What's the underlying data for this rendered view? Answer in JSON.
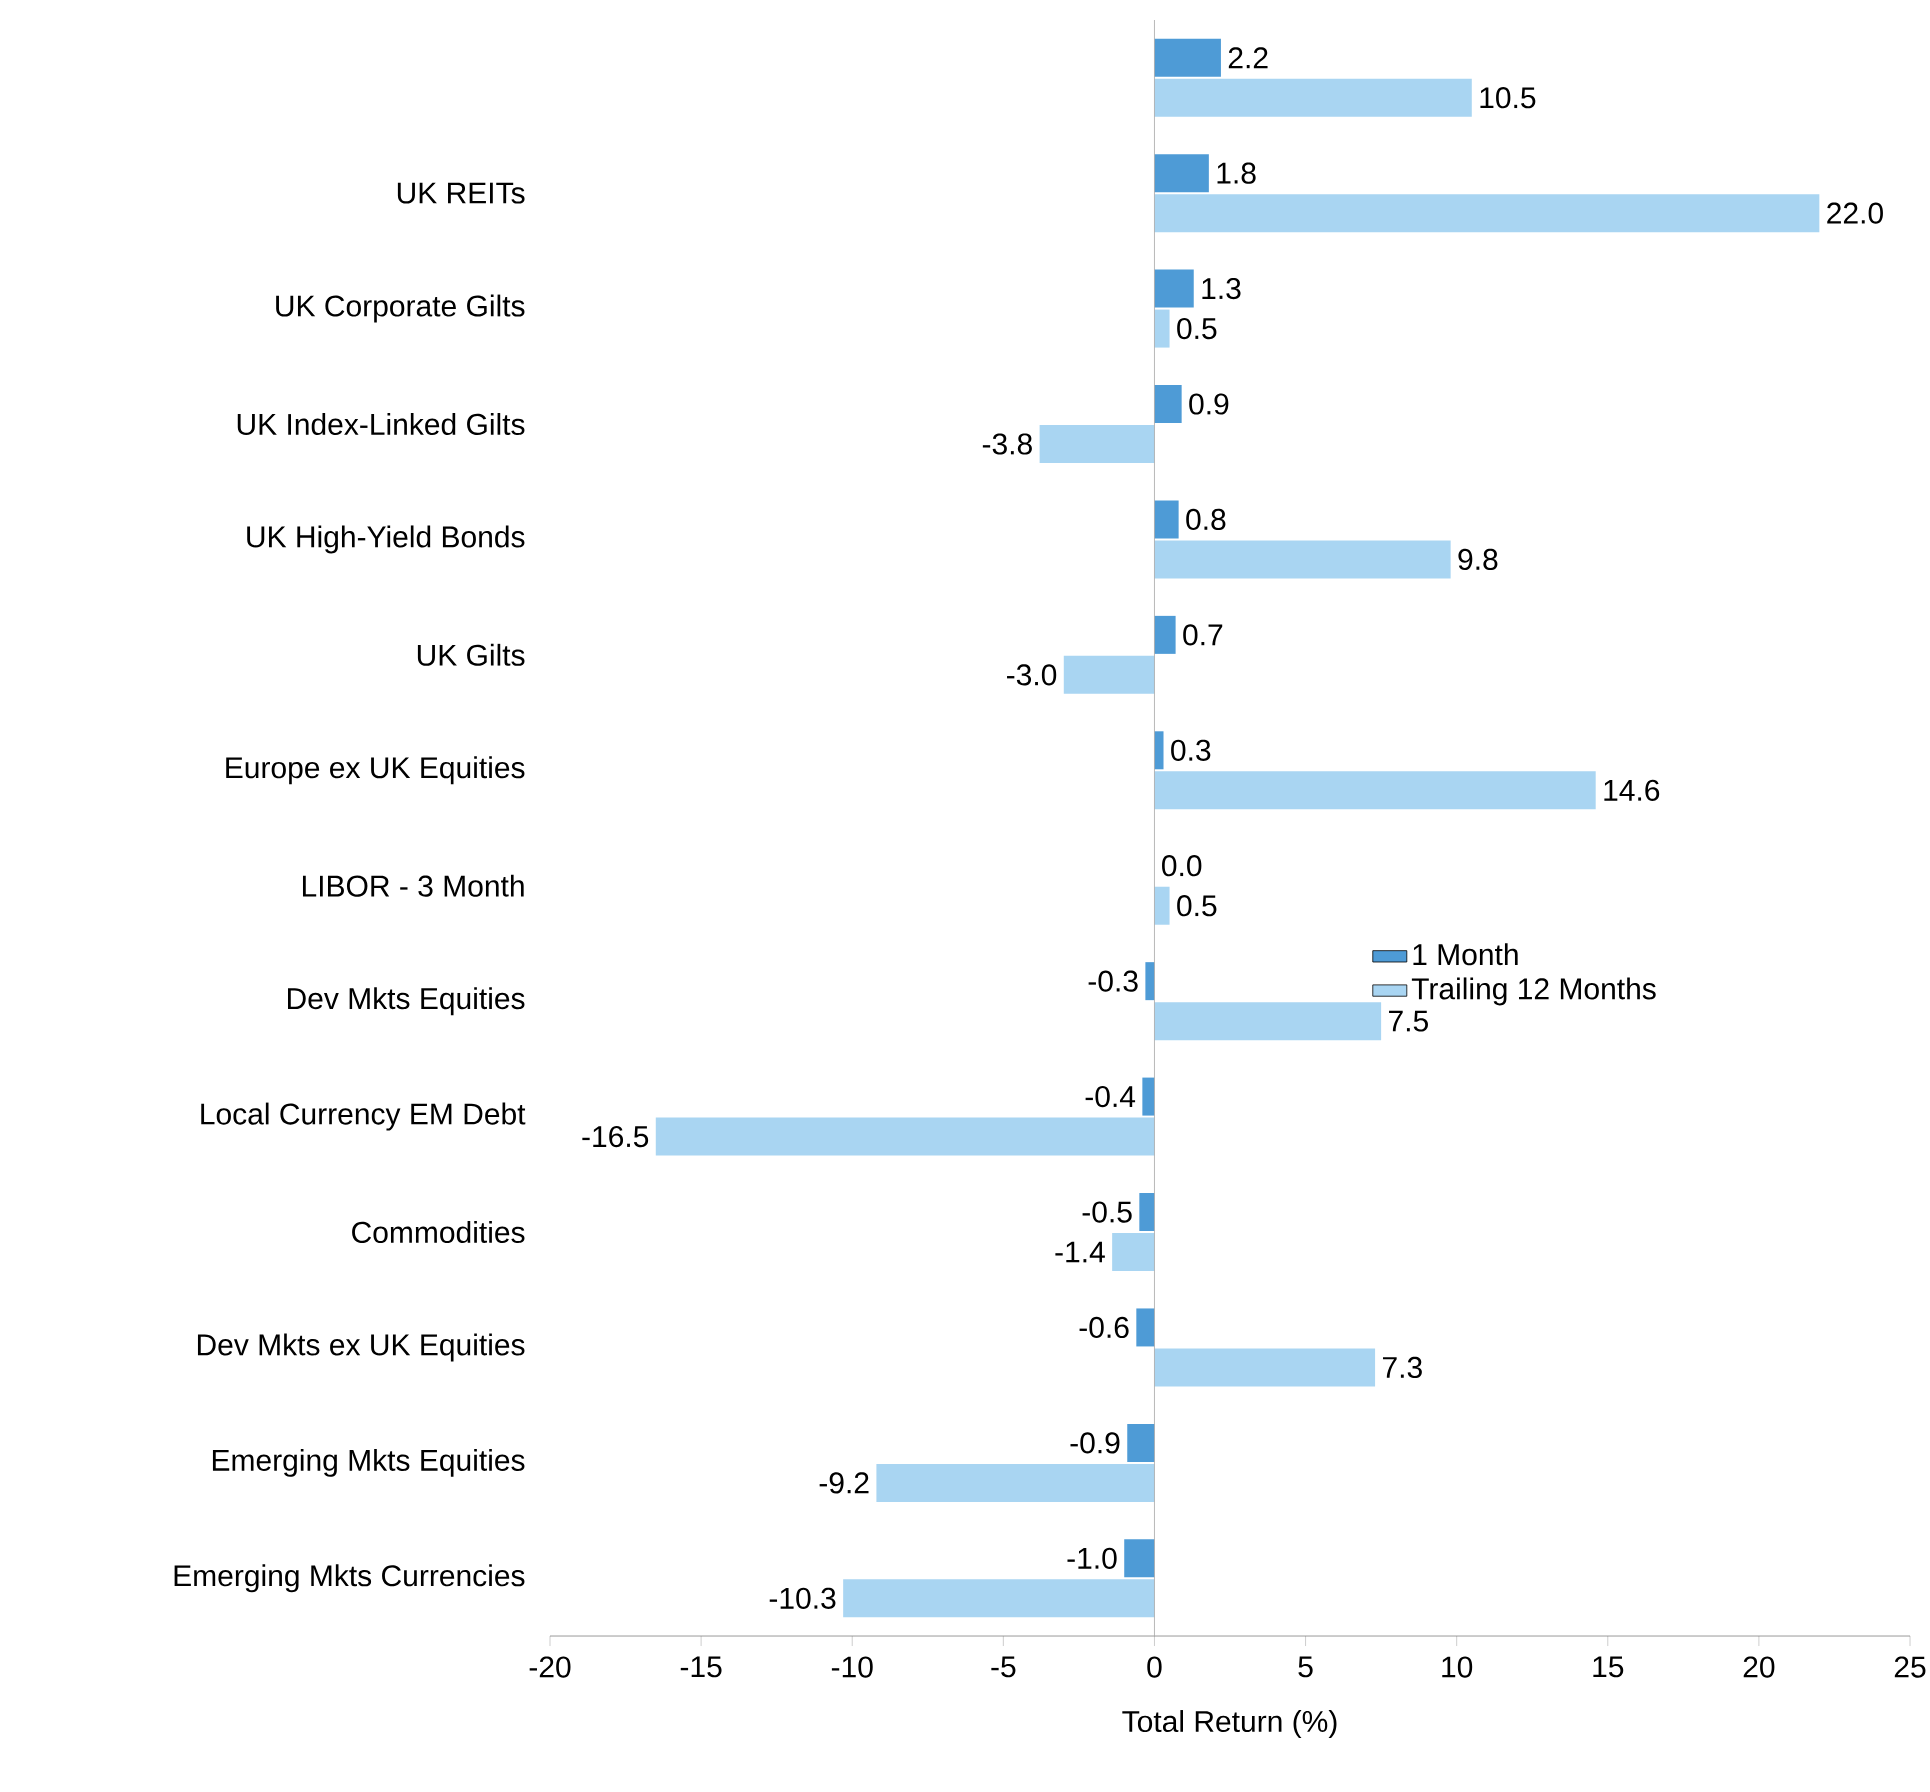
{
  "chart_data": {
    "type": "bar",
    "orientation": "horizontal",
    "categories": [
      null,
      "UK REITs",
      "UK Corporate Gilts",
      "UK Index-Linked Gilts",
      "UK High-Yield Bonds",
      "UK Gilts",
      "Europe ex UK Equities",
      "LIBOR - 3 Month",
      "Dev Mkts Equities",
      "Local Currency EM Debt",
      "Commodities",
      "Dev Mkts ex UK Equities",
      "Emerging Mkts Equities",
      "Emerging Mkts Currencies"
    ],
    "series": [
      {
        "name": "1 Month",
        "color": "#4e9bd6",
        "values": [
          2.2,
          1.8,
          1.3,
          0.9,
          0.8,
          0.7,
          0.3,
          0.0,
          -0.3,
          -0.4,
          -0.5,
          -0.6,
          -0.9,
          -1.0
        ],
        "value_labels": [
          "2.2",
          "1.8",
          "1.3",
          "0.9",
          "0.8",
          "0.7",
          "0.3",
          "0.0",
          "-0.3",
          "-0.4",
          "-0.5",
          "-0.6",
          "-0.9",
          "-1.0"
        ]
      },
      {
        "name": "Trailing 12 Months",
        "color": "#a9d5f2",
        "values": [
          10.5,
          22.0,
          0.5,
          -3.8,
          9.8,
          -3.0,
          14.6,
          0.5,
          7.5,
          -16.5,
          -1.4,
          7.3,
          -9.2,
          -10.3
        ],
        "value_labels": [
          "10.5",
          "22.0",
          "0.5",
          "-3.8",
          "9.8",
          "-3.0",
          "14.6",
          "0.5",
          "7.5",
          "-16.5",
          "-1.4",
          "7.3",
          "-9.2",
          "-10.3"
        ]
      }
    ],
    "xlabel": "Total Return (%)",
    "xlim": [
      -20,
      25
    ],
    "xticks": [
      -20,
      -15,
      -10,
      -5,
      0,
      5,
      10,
      15,
      20,
      25
    ],
    "ref_lines": [
      {
        "axis": "x",
        "value": 0,
        "color": "#a6a6a6"
      }
    ],
    "legend": "right",
    "grid": false
  }
}
